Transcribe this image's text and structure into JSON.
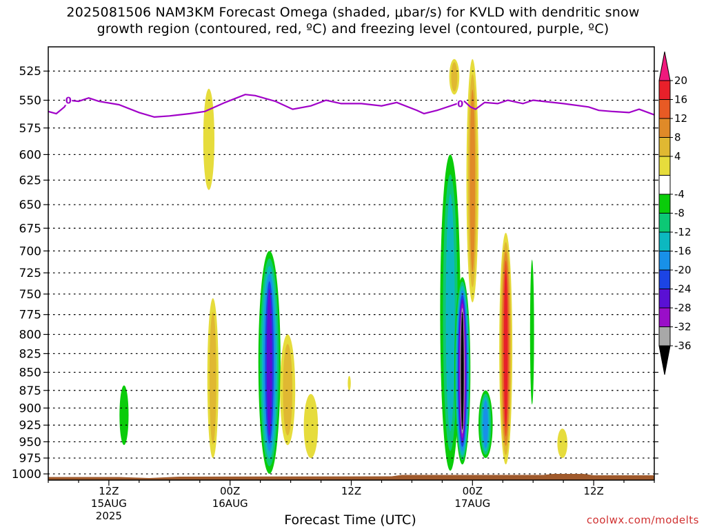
{
  "title_line1": "2025081506 NAM3KM Forecast Omega (shaded, μbar/s) for KVLD with dendritic snow",
  "title_line2": "growth region (contoured, red, ºC) and freezing level (contoured, purple, ºC)",
  "xaxis_title": "Forecast Time (UTC)",
  "watermark": "coolwx.com/modelts",
  "chart_data": {
    "type": "heatmap",
    "yaxis": {
      "quantity": "pressure (hPa)",
      "ticks": [
        525,
        550,
        575,
        600,
        625,
        650,
        675,
        700,
        725,
        750,
        775,
        800,
        825,
        850,
        875,
        900,
        925,
        950,
        975,
        1000
      ],
      "range": [
        505,
        1010
      ],
      "scale": "log-pressure, inverted"
    },
    "xaxis": {
      "range_hours": [
        6,
        66
      ],
      "ticks": [
        {
          "hour": 12,
          "label": "12Z",
          "date": "15AUG",
          "year": "2025"
        },
        {
          "hour": 24,
          "label": "00Z",
          "date": "16AUG",
          "year": ""
        },
        {
          "hour": 36,
          "label": "12Z",
          "date": "",
          "year": ""
        },
        {
          "hour": 48,
          "label": "00Z",
          "date": "17AUG",
          "year": ""
        },
        {
          "hour": 60,
          "label": "12Z",
          "date": "",
          "year": ""
        }
      ]
    },
    "grid": "dotted horizontal at each pressure tick",
    "colorbar": {
      "position": "right",
      "levels": [
        20,
        16,
        12,
        8,
        4,
        -4,
        -8,
        -12,
        -16,
        -20,
        -24,
        -28,
        -32,
        -36
      ],
      "colors": [
        "#f0197d",
        "#e8202a",
        "#e85a24",
        "#e08a28",
        "#e0b832",
        "#e6dc3c",
        "#ffffff",
        "#0acc0a",
        "#0cc875",
        "#0cb8c0",
        "#1890e8",
        "#1c44e4",
        "#5a10d4",
        "#9a0ec8",
        "#a8a8a8",
        "#000000"
      ]
    },
    "freezing_level": {
      "color": "#a000c8",
      "contour_label": "0",
      "label_hours": [
        8.0,
        46.8
      ],
      "points": [
        [
          6.0,
          560
        ],
        [
          6.8,
          562
        ],
        [
          7.6,
          556
        ],
        [
          8.0,
          550
        ],
        [
          9.0,
          551
        ],
        [
          10.0,
          548
        ],
        [
          11.0,
          551
        ],
        [
          13.0,
          554
        ],
        [
          15.0,
          561
        ],
        [
          16.5,
          565
        ],
        [
          18.0,
          564
        ],
        [
          20.0,
          562
        ],
        [
          21.5,
          560
        ],
        [
          23.5,
          552
        ],
        [
          25.5,
          545
        ],
        [
          26.5,
          546
        ],
        [
          28.5,
          551
        ],
        [
          30.2,
          558
        ],
        [
          32.0,
          555
        ],
        [
          33.5,
          550
        ],
        [
          35.0,
          553
        ],
        [
          37.0,
          553
        ],
        [
          39.0,
          555
        ],
        [
          40.5,
          552
        ],
        [
          42.5,
          559
        ],
        [
          43.2,
          562
        ],
        [
          44.5,
          559
        ],
        [
          46.5,
          553
        ],
        [
          47.2,
          551
        ],
        [
          47.8,
          556
        ],
        [
          48.3,
          558
        ],
        [
          49.2,
          552
        ],
        [
          50.5,
          553
        ],
        [
          51.5,
          550
        ],
        [
          53.0,
          553
        ],
        [
          54.0,
          550
        ],
        [
          57.0,
          553
        ],
        [
          59.5,
          556
        ],
        [
          60.5,
          559
        ],
        [
          61.8,
          560
        ],
        [
          63.5,
          561
        ],
        [
          64.5,
          558
        ],
        [
          66.0,
          563
        ]
      ]
    },
    "terrain": {
      "color": "#a05a2c",
      "top_hpa": 1005
    },
    "omega_features": [
      {
        "hour": 13.5,
        "hpa_top": 868,
        "hpa_bottom": 955,
        "width_h": 0.9,
        "peak": -4
      },
      {
        "hour": 21.9,
        "hpa_top": 540,
        "hpa_bottom": 635,
        "width_h": 1.1,
        "peak": 4
      },
      {
        "hour": 22.3,
        "hpa_top": 755,
        "hpa_bottom": 975,
        "width_h": 1.1,
        "peak": 8
      },
      {
        "hour": 27.9,
        "hpa_top": 700,
        "hpa_bottom": 1000,
        "width_h": 2.2,
        "peak": -24
      },
      {
        "hour": 29.7,
        "hpa_top": 800,
        "hpa_bottom": 955,
        "width_h": 1.5,
        "peak": 8
      },
      {
        "hour": 32.0,
        "hpa_top": 880,
        "hpa_bottom": 975,
        "width_h": 1.4,
        "peak": 4
      },
      {
        "hour": 35.8,
        "hpa_top": 855,
        "hpa_bottom": 875,
        "width_h": 0.3,
        "peak": 4
      },
      {
        "hour": 46.2,
        "hpa_top": 515,
        "hpa_bottom": 545,
        "width_h": 1.0,
        "peak": 8
      },
      {
        "hour": 45.8,
        "hpa_top": 600,
        "hpa_bottom": 995,
        "width_h": 2.0,
        "peak": -12
      },
      {
        "hour": 47.0,
        "hpa_top": 730,
        "hpa_bottom": 985,
        "width_h": 1.6,
        "peak": -36
      },
      {
        "hour": 48.0,
        "hpa_top": 515,
        "hpa_bottom": 760,
        "width_h": 1.2,
        "peak": 12
      },
      {
        "hour": 49.3,
        "hpa_top": 875,
        "hpa_bottom": 975,
        "width_h": 1.4,
        "peak": -16
      },
      {
        "hour": 51.3,
        "hpa_top": 680,
        "hpa_bottom": 985,
        "width_h": 1.3,
        "peak": 20
      },
      {
        "hour": 53.9,
        "hpa_top": 710,
        "hpa_bottom": 895,
        "width_h": 0.4,
        "peak": -4
      },
      {
        "hour": 56.9,
        "hpa_top": 930,
        "hpa_bottom": 975,
        "width_h": 1.0,
        "peak": 4
      }
    ]
  }
}
